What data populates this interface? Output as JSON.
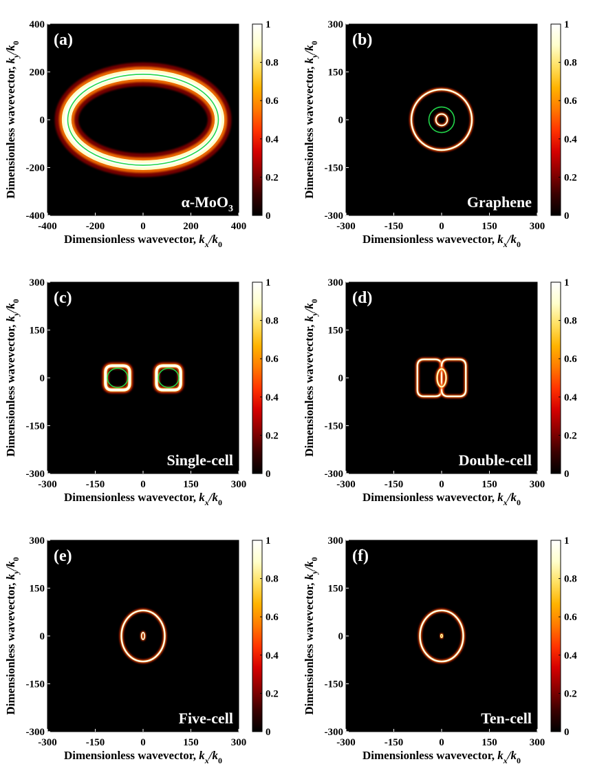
{
  "figure": {
    "ylabel": "Dimensionless wavevector, ",
    "xlabel": "Dimensionless wavevector, ",
    "ylabel_k": "k",
    "ylabel_ksub": "y",
    "xlabel_k": "k",
    "xlabel_ksub": "x",
    "over_k0": "/k",
    "over_k0_sub": "0",
    "colorbar_ticks": [
      "0",
      "0.2",
      "0.4",
      "0.6",
      "0.8",
      "1"
    ],
    "colormap": [
      "#000000",
      "#3a0000",
      "#8a0000",
      "#d40000",
      "#ff3300",
      "#ff7a00",
      "#ffb300",
      "#ffe060",
      "#ffffcc",
      "#ffffff"
    ],
    "contour_color": "#22d64a"
  },
  "chart_data": [
    {
      "type": "heatmap",
      "panel_label": "(a)",
      "name_label": "α-MoO",
      "name_sub": "3",
      "xlim": [
        -400,
        400
      ],
      "ylim": [
        -400,
        400
      ],
      "xticks": [
        "-400",
        "-200",
        "0",
        "200",
        "400"
      ],
      "yticks": [
        "-400",
        "-200",
        "0",
        "200",
        "400"
      ],
      "clim": [
        0,
        1
      ],
      "rings": [
        {
          "shape": "ellipse",
          "cx": 0,
          "cy": 0,
          "rx": 320,
          "ry": 190,
          "width": 38,
          "intensity": 1.0
        }
      ],
      "contours": [
        {
          "cx": 0,
          "cy": 0,
          "rx": 315,
          "ry": 190
        }
      ]
    },
    {
      "type": "heatmap",
      "panel_label": "(b)",
      "name_label": "Graphene",
      "name_sub": "",
      "xlim": [
        -300,
        300
      ],
      "ylim": [
        -300,
        300
      ],
      "xticks": [
        "-300",
        "-150",
        "0",
        "150",
        "300"
      ],
      "yticks": [
        "-300",
        "-150",
        "0",
        "150",
        "300"
      ],
      "clim": [
        0,
        1
      ],
      "rings": [
        {
          "shape": "ellipse",
          "cx": 0,
          "cy": 0,
          "rx": 95,
          "ry": 95,
          "width": 5,
          "intensity": 1.0
        },
        {
          "shape": "ellipse",
          "cx": 0,
          "cy": 0,
          "rx": 18,
          "ry": 18,
          "width": 4,
          "intensity": 1.0
        }
      ],
      "contours": [
        {
          "cx": 0,
          "cy": 0,
          "rx": 40,
          "ry": 40
        }
      ]
    },
    {
      "type": "heatmap",
      "panel_label": "(c)",
      "name_label": "Single-cell",
      "name_sub": "",
      "xlim": [
        -300,
        300
      ],
      "ylim": [
        -300,
        300
      ],
      "xticks": [
        "-300",
        "-150",
        "0",
        "150",
        "300"
      ],
      "yticks": [
        "-300",
        "-150",
        "0",
        "150",
        "300"
      ],
      "clim": [
        0,
        1
      ],
      "rings": [
        {
          "shape": "rect",
          "cx": -80,
          "cy": 0,
          "rx": 38,
          "ry": 38,
          "width": 9,
          "intensity": 1.0
        },
        {
          "shape": "rect",
          "cx": 80,
          "cy": 0,
          "rx": 38,
          "ry": 38,
          "width": 9,
          "intensity": 1.0
        }
      ],
      "contours": [
        {
          "cx": -80,
          "cy": 0,
          "rx": 32,
          "ry": 30
        },
        {
          "cx": 80,
          "cy": 0,
          "rx": 32,
          "ry": 30
        }
      ]
    },
    {
      "type": "heatmap",
      "panel_label": "(d)",
      "name_label": "Double-cell",
      "name_sub": "",
      "xlim": [
        -300,
        300
      ],
      "ylim": [
        -300,
        300
      ],
      "xticks": [
        "-300",
        "-150",
        "0",
        "150",
        "300"
      ],
      "yticks": [
        "-300",
        "-150",
        "0",
        "150",
        "300"
      ],
      "clim": [
        0,
        1
      ],
      "rings": [
        {
          "shape": "rect",
          "cx": -38,
          "cy": 0,
          "rx": 38,
          "ry": 58,
          "width": 5,
          "intensity": 1.0
        },
        {
          "shape": "rect",
          "cx": 38,
          "cy": 0,
          "rx": 38,
          "ry": 58,
          "width": 5,
          "intensity": 1.0
        },
        {
          "shape": "ellipse",
          "cx": 0,
          "cy": 0,
          "rx": 14,
          "ry": 28,
          "width": 5,
          "intensity": 0.95
        }
      ],
      "contours": []
    },
    {
      "type": "heatmap",
      "panel_label": "(e)",
      "name_label": "Five-cell",
      "name_sub": "",
      "xlim": [
        -300,
        300
      ],
      "ylim": [
        -300,
        300
      ],
      "xticks": [
        "-300",
        "-150",
        "0",
        "150",
        "300"
      ],
      "yticks": [
        "-300",
        "-150",
        "0",
        "150",
        "300"
      ],
      "clim": [
        0,
        1
      ],
      "rings": [
        {
          "shape": "ellipse",
          "cx": 0,
          "cy": 0,
          "rx": 68,
          "ry": 80,
          "width": 5,
          "intensity": 1.0
        },
        {
          "shape": "ellipse",
          "cx": 0,
          "cy": 0,
          "rx": 5,
          "ry": 11,
          "width": 3,
          "intensity": 1.0
        }
      ],
      "contours": []
    },
    {
      "type": "heatmap",
      "panel_label": "(f)",
      "name_label": "Ten-cell",
      "name_sub": "",
      "xlim": [
        -300,
        300
      ],
      "ylim": [
        -300,
        300
      ],
      "xticks": [
        "-300",
        "-150",
        "0",
        "150",
        "300"
      ],
      "yticks": [
        "-300",
        "-150",
        "0",
        "150",
        "300"
      ],
      "clim": [
        0,
        1
      ],
      "rings": [
        {
          "shape": "ellipse",
          "cx": 0,
          "cy": 0,
          "rx": 68,
          "ry": 80,
          "width": 5,
          "intensity": 1.0
        },
        {
          "shape": "ellipse",
          "cx": 0,
          "cy": 0,
          "rx": 3,
          "ry": 5,
          "width": 2,
          "intensity": 0.9
        }
      ],
      "contours": []
    }
  ]
}
